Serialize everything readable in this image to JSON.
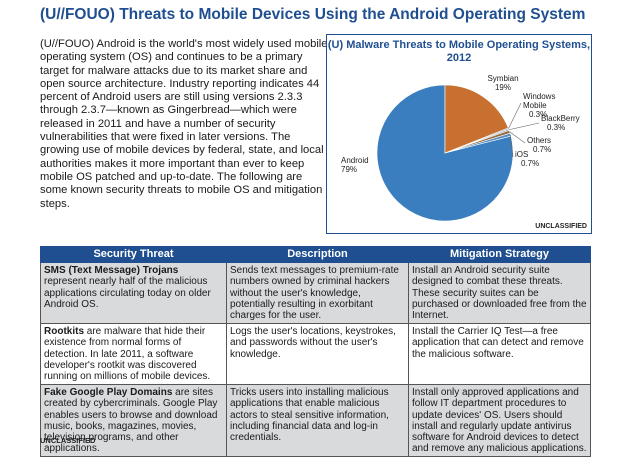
{
  "document": {
    "title": "(U//FOUO)  Threats to Mobile Devices Using the Android Operating System",
    "intro": "(U//FOUO)  Android is the world's most widely used mobile operating system (OS) and continues to be a primary target for malware attacks due to its market share and open source architecture.  Industry reporting indicates 44 percent of Android users are still using versions 2.3.3 through 2.3.7—known as Gingerbread—which were released in 2011 and have a number of security vulnerabilities that were fixed in later versions.  The growing use of mobile devices by federal, state, and local authorities makes it more important than ever to keep mobile OS patched and up-to-date.  The following are some known security threats to mobile OS and mitigation steps.",
    "footer_marking": "UNCLASSIFIED"
  },
  "chart": {
    "footer_marking": "UNCLASSIFIED",
    "colors": {
      "Android": "#3a7ebf",
      "Symbian": "#c8702f",
      "Windows Mobile": "#8aa8c8",
      "BlackBerry": "#7f8fa0",
      "Others": "#9a6a3a",
      "iOS": "#5b8fc4"
    }
  },
  "chart_data": {
    "type": "pie",
    "title": "(U)  Malware Threats to Mobile Operating Systems, 2012",
    "categories": [
      "Android",
      "Symbian",
      "Windows Mobile",
      "BlackBerry",
      "Others",
      "iOS"
    ],
    "values": [
      79,
      19,
      0.3,
      0.3,
      0.7,
      0.7
    ],
    "value_labels": [
      "79%",
      "19%",
      "0.3%",
      "0.3%",
      "0.7%",
      "0.7%"
    ]
  },
  "table": {
    "headers": [
      "Security Threat",
      "Description",
      "Mitigation Strategy"
    ],
    "rows": [
      {
        "threat_name": "SMS (Text Message) Trojans",
        "threat_rest": " represent nearly half of the malicious applications circulating today on older Android OS.",
        "description": "Sends text messages to premium-rate numbers owned by criminal hackers without the user's knowledge, potentially resulting in exorbitant charges for the user.",
        "mitigation": "Install an Android security suite designed to combat these threats.  These security suites can be purchased or downloaded free from the Internet."
      },
      {
        "threat_name": "Rootkits",
        "threat_rest": " are malware that hide their existence from normal forms of detection.  In late 2011, a software developer's rootkit was discovered running on millions of mobile devices.",
        "description": "Logs the user's locations, keystrokes, and passwords without the user's knowledge.",
        "mitigation": "Install the Carrier IQ Test—a free application that can detect and remove the malicious software."
      },
      {
        "threat_name": "Fake Google Play Domains",
        "threat_rest": " are sites created by cybercriminals.  Google Play enables users to browse and download music, books, magazines, movies, television programs, and other applications.",
        "description": "Tricks users into installing malicious applications that enable malicious actors to steal sensitive information, including financial data and log-in credentials.",
        "mitigation": "Install only approved applications and follow IT department procedures to update devices' OS.  Users should install and regularly update antivirus software for Android devices to detect and remove any malicious applications."
      }
    ]
  }
}
